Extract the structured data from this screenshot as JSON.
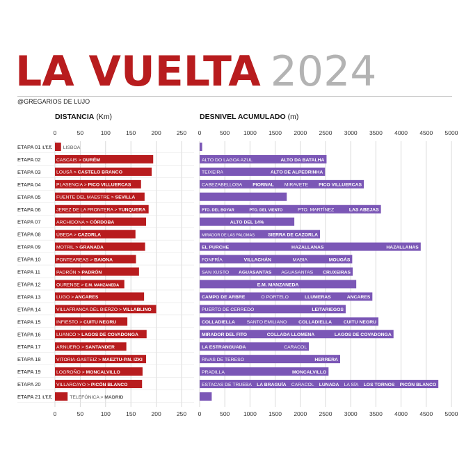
{
  "header": {
    "title": "LA VUELTA",
    "year": "2024",
    "handle": "@GREGARIOS DE LUJO"
  },
  "colors": {
    "distance": "#b81c1e",
    "elevation": "#7b57b6",
    "grid": "#d9d9d9"
  },
  "chart_data": [
    {
      "type": "bar",
      "orientation": "horizontal",
      "title": "DISTANCIA",
      "unit": "(Km)",
      "xlim": [
        0,
        250
      ],
      "ticks": [
        0,
        50,
        100,
        150,
        200,
        250
      ],
      "categories": [
        "ETAPA 01",
        "ETAPA 02",
        "ETAPA 03",
        "ETAPA 04",
        "ETAPA 05",
        "ETAPA 06",
        "ETAPA 07",
        "ETAPA 08",
        "ETAPA 09",
        "ETAPA 10",
        "ETAPA 11",
        "ETAPA 12",
        "ETAPA 13",
        "ETAPA 14",
        "ETAPA 15",
        "ETAPA 16",
        "ETAPA 17",
        "ETAPA 18",
        "ETAPA 19",
        "ETAPA 20",
        "ETAPA 21"
      ],
      "stages": [
        {
          "badge": "I.T.T.",
          "value": 12,
          "route": [
            {
              "t": "LISBOA",
              "b": false
            }
          ]
        },
        {
          "value": 194,
          "route": [
            {
              "t": "CASCAIS",
              "b": false
            },
            {
              "t": ">",
              "b": false
            },
            {
              "t": "OURÉM",
              "b": true
            }
          ]
        },
        {
          "value": 191,
          "route": [
            {
              "t": "LOUSÃ",
              "b": false
            },
            {
              "t": ">",
              "b": false
            },
            {
              "t": "CASTELO BRANCO",
              "b": true
            }
          ]
        },
        {
          "value": 170,
          "route": [
            {
              "t": "PLASENCIA",
              "b": false
            },
            {
              "t": ">",
              "b": false
            },
            {
              "t": "PICO VILLUERCAS",
              "b": true
            }
          ]
        },
        {
          "value": 177,
          "route": [
            {
              "t": "FUENTE DEL MAESTRE",
              "b": false
            },
            {
              "t": ">",
              "b": false
            },
            {
              "t": "SEVILLA",
              "b": true
            }
          ]
        },
        {
          "value": 185,
          "route": [
            {
              "t": "JEREZ DE LA FRONTERA",
              "b": false
            },
            {
              "t": ">",
              "b": false
            },
            {
              "t": "YUNQUERA",
              "b": true
            }
          ]
        },
        {
          "value": 180,
          "route": [
            {
              "t": "ARCHIDONA",
              "b": false
            },
            {
              "t": ">",
              "b": false
            },
            {
              "t": "CÓRDOBA",
              "b": true
            }
          ]
        },
        {
          "value": 159,
          "route": [
            {
              "t": "ÚBEDA",
              "b": false
            },
            {
              "t": ">",
              "b": false
            },
            {
              "t": "CAZORLA",
              "b": true
            }
          ]
        },
        {
          "value": 178,
          "route": [
            {
              "t": "MOTRIL",
              "b": false
            },
            {
              "t": ">",
              "b": false
            },
            {
              "t": "GRANADA",
              "b": true
            }
          ]
        },
        {
          "value": 160,
          "route": [
            {
              "t": "PONTEAREAS",
              "b": false
            },
            {
              "t": ">",
              "b": false
            },
            {
              "t": "BAIONA",
              "b": true
            }
          ]
        },
        {
          "value": 166,
          "route": [
            {
              "t": "PADRÓN",
              "b": false
            },
            {
              "t": ">",
              "b": false
            },
            {
              "t": "PADRÓN",
              "b": true
            }
          ]
        },
        {
          "value": 137,
          "route": [
            {
              "t": "OURENSE",
              "b": false
            },
            {
              "t": ">",
              "b": false
            },
            {
              "t": "E.M. MANZANEDA",
              "b": true,
              "s": true
            }
          ]
        },
        {
          "value": 176,
          "route": [
            {
              "t": "LUGO",
              "b": false
            },
            {
              "t": ">",
              "b": false
            },
            {
              "t": "ANCARES",
              "b": true
            }
          ]
        },
        {
          "value": 200,
          "route": [
            {
              "t": "VILLAFRANCA DEL BIERZO",
              "b": false
            },
            {
              "t": ">",
              "b": false
            },
            {
              "t": "VILLABLINO",
              "b": true
            }
          ]
        },
        {
          "value": 143,
          "route": [
            {
              "t": "INFIESTO",
              "b": false
            },
            {
              "t": ">",
              "b": false
            },
            {
              "t": "CUITU NEGRU",
              "b": true
            }
          ]
        },
        {
          "value": 181,
          "route": [
            {
              "t": "LUANCO",
              "b": false
            },
            {
              "t": ">",
              "b": false
            },
            {
              "t": "LAGOS DE COVADONGA",
              "b": true
            }
          ]
        },
        {
          "value": 141,
          "route": [
            {
              "t": "ARNUERO",
              "b": false
            },
            {
              "t": ">",
              "b": false
            },
            {
              "t": "SANTANDER",
              "b": true
            }
          ]
        },
        {
          "value": 180,
          "route": [
            {
              "t": "VITORIA-GASTEIZ",
              "b": false
            },
            {
              "t": ">",
              "b": false
            },
            {
              "t": "MAEZTU-P.N. IZKI",
              "b": true
            }
          ]
        },
        {
          "value": 173,
          "route": [
            {
              "t": "LOGROÑO",
              "b": false
            },
            {
              "t": ">",
              "b": false
            },
            {
              "t": "MONCALVILLO",
              "b": true
            }
          ]
        },
        {
          "value": 172,
          "route": [
            {
              "t": "VILLARCAYO",
              "b": false
            },
            {
              "t": ">",
              "b": false
            },
            {
              "t": "PICÓN BLANCO",
              "b": true
            }
          ]
        },
        {
          "badge": "I.T.T.",
          "value": 25,
          "route": [
            {
              "t": "TELEFÓNICA",
              "b": false
            },
            {
              "t": ">",
              "b": false
            },
            {
              "t": "MADRID",
              "b": true
            }
          ]
        }
      ]
    },
    {
      "type": "bar",
      "orientation": "horizontal",
      "title": "DESNIVEL ACUMULADO",
      "unit": "(m)",
      "xlim": [
        0,
        5000
      ],
      "ticks": [
        0,
        500,
        1000,
        1500,
        2000,
        2500,
        3000,
        3500,
        4000,
        4500,
        5000
      ],
      "stages": [
        {
          "value": 50,
          "climbs": []
        },
        {
          "value": 2520,
          "climbs": [
            {
              "t": "ALTO DO LAGOA AZUL",
              "b": false
            },
            {
              "t": "ALTO DA BATALHA",
              "b": true
            }
          ]
        },
        {
          "value": 2490,
          "climbs": [
            {
              "t": "TEIXEIRA",
              "b": false
            },
            {
              "t": "ALTO DE ALPEDRINHA",
              "b": true
            }
          ]
        },
        {
          "value": 3260,
          "climbs": [
            {
              "t": "CABEZABELLOSA",
              "b": false
            },
            {
              "t": "PIORNAL",
              "b": true
            },
            {
              "t": "MIRAVETE",
              "b": false
            },
            {
              "t": "PICO VILLUERCAS",
              "b": true
            }
          ]
        },
        {
          "value": 1730,
          "climbs": []
        },
        {
          "value": 3600,
          "climbs": [
            {
              "t": "PTO. DEL BOYAR",
              "b": true,
              "s": true
            },
            {
              "t": "PTO. DEL VIENTO",
              "b": true,
              "s": true
            },
            {
              "t": "PTO. MARTÍNEZ",
              "b": false
            },
            {
              "t": "LAS ABEJAS",
              "b": true
            }
          ]
        },
        {
          "value": 1880,
          "climbs": [
            {
              "t": "ALTO DEL 14%",
              "b": true
            }
          ]
        },
        {
          "value": 2390,
          "climbs": [
            {
              "t": "MIRADOR DE LAS PALOMAS",
              "b": false,
              "s": true
            },
            {
              "t": "SIERRA DE CAZORLA",
              "b": true
            }
          ]
        },
        {
          "value": 4390,
          "climbs": [
            {
              "t": "EL PURCHE",
              "b": true
            },
            {
              "t": "HAZALLANAS",
              "b": true
            },
            {
              "t": "HAZALLANAS",
              "b": true
            }
          ]
        },
        {
          "value": 3030,
          "climbs": [
            {
              "t": "FONFRÍA",
              "b": false
            },
            {
              "t": "VILLACHÁN",
              "b": true
            },
            {
              "t": "MABIA",
              "b": false
            },
            {
              "t": "MOUGÁS",
              "b": true
            }
          ]
        },
        {
          "value": 3040,
          "climbs": [
            {
              "t": "SAN XUSTO",
              "b": false
            },
            {
              "t": "AGUASANTAS",
              "b": true
            },
            {
              "t": "AGUASANTAS",
              "b": false
            },
            {
              "t": "CRUXEIRAS",
              "b": true
            }
          ]
        },
        {
          "value": 3110,
          "climbs": [
            {
              "t": "E.M. MANZANEDA",
              "b": true
            }
          ]
        },
        {
          "value": 3430,
          "climbs": [
            {
              "t": "CAMPO DE ARBRE",
              "b": true
            },
            {
              "t": "O PORTELO",
              "b": false
            },
            {
              "t": "LLUMERAS",
              "b": true
            },
            {
              "t": "ANCARES",
              "b": true
            }
          ]
        },
        {
          "value": 2900,
          "climbs": [
            {
              "t": "PUERTO DE CERREDO",
              "b": false
            },
            {
              "t": "LEITARIEGOS",
              "b": true
            }
          ]
        },
        {
          "value": 3550,
          "climbs": [
            {
              "t": "COLLADIELLA",
              "b": true
            },
            {
              "t": "SANTO EMILIANO",
              "b": false
            },
            {
              "t": "COLLADIELLA",
              "b": true
            },
            {
              "t": "CUITU NEGRU",
              "b": true
            }
          ]
        },
        {
          "value": 3850,
          "climbs": [
            {
              "t": "MIRADOR DEL FITO",
              "b": true
            },
            {
              "t": "COLLADA LLOMENA",
              "b": true
            },
            {
              "t": "LAGOS DE COVADONGA",
              "b": true
            }
          ]
        },
        {
          "value": 2170,
          "climbs": [
            {
              "t": "LA ESTRANGUADA",
              "b": true
            },
            {
              "t": "CARACOL",
              "b": false
            }
          ]
        },
        {
          "value": 2790,
          "climbs": [
            {
              "t": "RIVAS DE TERESO",
              "b": false
            },
            {
              "t": "HERRERA",
              "b": true
            }
          ]
        },
        {
          "value": 2560,
          "climbs": [
            {
              "t": "PRADILLA",
              "b": false
            },
            {
              "t": "MONCALVILLO",
              "b": true
            }
          ]
        },
        {
          "value": 4740,
          "climbs": [
            {
              "t": "ESTACAS DE TRUEBA",
              "b": false
            },
            {
              "t": "LA BRAGUÍA",
              "b": true
            },
            {
              "t": "CARACOL",
              "b": false
            },
            {
              "t": "LUNADA",
              "b": true
            },
            {
              "t": "LA SÍA",
              "b": false
            },
            {
              "t": "LOS TORNOS",
              "b": true
            },
            {
              "t": "PICÓN BLANCO",
              "b": true
            }
          ]
        },
        {
          "value": 240,
          "climbs": []
        }
      ]
    }
  ]
}
